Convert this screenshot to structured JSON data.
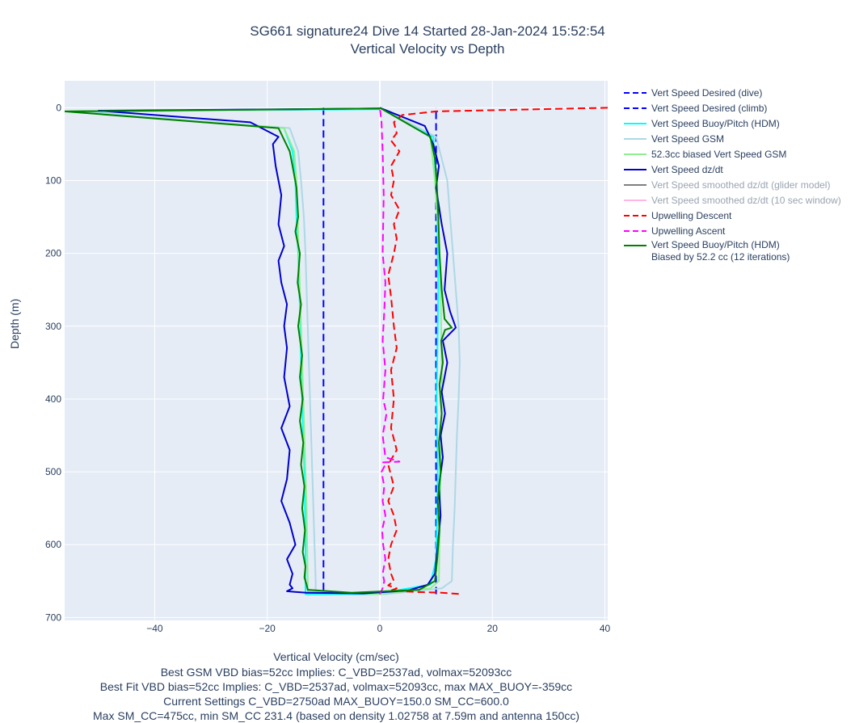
{
  "chart_data": {
    "type": "line",
    "title": "SG661 signature24 Dive 14 Started 28-Jan-2024 15:52:54",
    "subtitle": "Vertical Velocity vs Depth",
    "xlabel": "Vertical Velocity (cm/sec)",
    "ylabel": "Depth (m)",
    "xlim": [
      -56,
      40.5
    ],
    "ylim": [
      704,
      -37
    ],
    "y_reversed": true,
    "x_ticks": [
      -40,
      -20,
      0,
      20,
      40
    ],
    "x_tick_labels": [
      "−40",
      "−20",
      "0",
      "20",
      "40"
    ],
    "y_ticks": [
      0,
      100,
      200,
      300,
      400,
      500,
      600,
      700
    ],
    "y_tick_labels": [
      "0",
      "100",
      "200",
      "300",
      "400",
      "500",
      "600",
      "700"
    ],
    "grid": true,
    "legend_position": "right",
    "annotations": [
      "Best GSM VBD bias=52cc Implies: C_VBD=2537ad, volmax=52093cc",
      "Best Fit VBD bias=52cc Implies: C_VBD=2537ad, volmax=52093cc, max MAX_BUOY=-359cc",
      "Current Settings C_VBD=2750ad MAX_BUOY=150.0 SM_CC=600.0",
      "Max SM_CC=475cc, min SM_CC 231.4 (based on density 1.02758 at 7.59m and antenna 150cc)"
    ],
    "series": [
      {
        "name": "Vert Speed Desired (dive)",
        "color": "#0000ff",
        "dash": "dash",
        "x": [
          -10,
          -10
        ],
        "y": [
          0,
          668
        ]
      },
      {
        "name": "Vert Speed Desired (climb)",
        "color": "#0000ff",
        "dash": "dash",
        "x": [
          10,
          10
        ],
        "y": [
          668,
          0
        ]
      },
      {
        "name": "Vert Speed Buoy/Pitch (HDM)",
        "color": "#00ffff",
        "dash": "solid",
        "x": [
          0,
          -54,
          -17,
          -15.5,
          -15,
          -14.8,
          -14.5,
          -14.3,
          -14.1,
          -14,
          -13.8,
          -13.6,
          -13.4,
          -13.3,
          -13.2,
          -13.2,
          -13.2,
          -1,
          9,
          10,
          10.2,
          10.3,
          10.2,
          10.1,
          10.2,
          10.3,
          10.4,
          10.3,
          10.2,
          10,
          9.5,
          0
        ],
        "y": [
          2,
          5,
          28,
          60,
          100,
          150,
          200,
          250,
          300,
          350,
          400,
          450,
          500,
          550,
          600,
          650,
          668,
          668,
          655,
          620,
          560,
          500,
          450,
          400,
          350,
          300,
          250,
          200,
          150,
          100,
          40,
          0
        ]
      },
      {
        "name": "Vert Speed GSM",
        "color": "#add8e6",
        "dash": "solid",
        "x": [
          0,
          -53,
          -16,
          -14.5,
          -14,
          -13.5,
          -13.2,
          -13,
          -12.8,
          -12.6,
          -12.4,
          -12.2,
          -12,
          -11.8,
          -11.6,
          -11.4,
          -11.4,
          1,
          11,
          12.8,
          13,
          13.3,
          13.5,
          13.7,
          14,
          14.2,
          14,
          13.5,
          13,
          12.5,
          12,
          10,
          0
        ],
        "y": [
          1,
          6,
          28,
          60,
          100,
          150,
          200,
          250,
          300,
          350,
          400,
          450,
          500,
          550,
          600,
          650,
          665,
          668,
          660,
          650,
          600,
          550,
          500,
          450,
          400,
          350,
          300,
          250,
          200,
          150,
          100,
          40,
          0
        ]
      },
      {
        "name": "52.3cc biased Vert Speed GSM",
        "color": "#90ee90",
        "dash": "solid",
        "x": [
          0,
          -56,
          -17,
          -15.2,
          -14.8,
          -14.6,
          -14.4,
          -14.2,
          -14,
          -13.8,
          -13.6,
          -13.4,
          -13.2,
          -13,
          -12.9,
          -12.8,
          -12.8,
          0,
          9,
          10.5,
          10.6,
          10.7,
          10.8,
          10.9,
          11,
          11,
          10.9,
          10.8,
          10.6,
          10.2,
          9.8,
          9,
          0
        ],
        "y": [
          1,
          5,
          28,
          60,
          100,
          150,
          200,
          250,
          300,
          350,
          400,
          450,
          500,
          550,
          600,
          650,
          665,
          668,
          660,
          650,
          600,
          550,
          500,
          450,
          400,
          350,
          300,
          250,
          200,
          150,
          100,
          40,
          0
        ]
      },
      {
        "name": "Vert Speed dz/dt",
        "color": "#0000cd",
        "dash": "solid",
        "x": [
          0,
          -50,
          -23,
          -18,
          -19,
          -18.5,
          -17.5,
          -18,
          -17,
          -18,
          -17.5,
          -16.5,
          -17,
          -16.5,
          -17,
          -16,
          -17.5,
          -16,
          -16.5,
          -17.5,
          -16,
          -15,
          -16.5,
          -15.5,
          -16,
          -15.5,
          -16.5,
          -15,
          -13,
          -3,
          5,
          8.5,
          9.8,
          10.3,
          10.8,
          10.5,
          11.2,
          10.8,
          11.6,
          11,
          12,
          11.2,
          13.5,
          12.5,
          11.5,
          12,
          11,
          10,
          10.5,
          9.5,
          8,
          0
        ],
        "y": [
          1,
          4,
          20,
          40,
          50,
          80,
          120,
          160,
          190,
          210,
          240,
          270,
          300,
          330,
          370,
          410,
          440,
          470,
          510,
          540,
          570,
          600,
          620,
          640,
          655,
          660,
          664,
          665,
          666,
          667,
          663,
          655,
          640,
          600,
          560,
          520,
          480,
          450,
          420,
          390,
          350,
          320,
          302,
          280,
          250,
          200,
          160,
          110,
          80,
          50,
          25,
          0
        ]
      },
      {
        "name": "Vert Speed smoothed dz/dt (glider model)",
        "color": "#7f7f7f",
        "dash": "solid",
        "legend_muted": true,
        "x": [],
        "y": []
      },
      {
        "name": "Vert Speed smoothed dz/dt (10 sec window)",
        "color": "#ffb6e6",
        "dash": "solid",
        "legend_muted": true,
        "x": [],
        "y": []
      },
      {
        "name": "Upwelling Descent",
        "color": "#ff0000",
        "dash": "dash",
        "x": [
          40.5,
          10,
          4,
          2.5,
          3,
          2,
          3.5,
          2,
          2.5,
          2,
          3.5,
          2.5,
          3,
          2.5,
          1.5,
          2,
          2.5,
          3,
          2,
          2.5,
          2,
          3,
          1.5,
          2.5,
          1.5,
          2.5,
          3,
          2,
          1.5,
          2,
          2.5,
          1.5,
          3,
          2,
          6.5,
          11,
          14.5
        ],
        "y": [
          0,
          5,
          10,
          20,
          35,
          45,
          60,
          80,
          100,
          120,
          140,
          160,
          180,
          200,
          230,
          260,
          300,
          330,
          360,
          400,
          440,
          470,
          490,
          520,
          540,
          560,
          580,
          600,
          620,
          640,
          650,
          656,
          660,
          663,
          665,
          666,
          668
        ]
      },
      {
        "name": "Upwelling Ascent",
        "color": "#ff00ff",
        "dash": "dash",
        "x": [
          0,
          0.5,
          0.8,
          0.5,
          1,
          0.6,
          0.4,
          1,
          0.5,
          0.8,
          0.3,
          1,
          0.6,
          3.5,
          1,
          0.5,
          1.2,
          0.6,
          1,
          0.5,
          0.8,
          1,
          0.5,
          0.7,
          0.5,
          0.3,
          0
        ],
        "y": [
          668,
          660,
          650,
          640,
          620,
          600,
          580,
          560,
          540,
          520,
          500,
          490,
          487,
          486,
          480,
          450,
          420,
          400,
          360,
          320,
          280,
          240,
          200,
          120,
          60,
          20,
          0
        ]
      },
      {
        "name": "Vert Speed Buoy/Pitch (HDM)\nBiased by 52.2 cc (12 iterations)",
        "color": "#008000",
        "dash": "solid",
        "x": [
          0,
          -56,
          -18,
          -16,
          -15.5,
          -14.8,
          -14.5,
          -15,
          -14.2,
          -14.6,
          -14,
          -14.5,
          -13.8,
          -14.2,
          -13.7,
          -14.2,
          -13.6,
          -14,
          -13.4,
          -13.8,
          -13.3,
          -13.7,
          -13.2,
          -13.4,
          -13,
          -12.8,
          -5,
          7,
          9.8,
          10.2,
          10.6,
          10.3,
          10.8,
          10.5,
          11,
          10.6,
          11.2,
          10.9,
          11.6,
          12.8,
          11.5,
          11,
          10.6,
          10.4,
          10.1,
          9.8,
          9,
          0
        ],
        "y": [
          1,
          5,
          28,
          60,
          80,
          110,
          150,
          170,
          200,
          240,
          270,
          300,
          340,
          370,
          400,
          430,
          460,
          490,
          520,
          550,
          580,
          610,
          630,
          645,
          655,
          662,
          666,
          662,
          650,
          620,
          580,
          540,
          500,
          460,
          420,
          380,
          350,
          320,
          305,
          302,
          290,
          250,
          200,
          150,
          100,
          70,
          40,
          0
        ]
      }
    ]
  }
}
